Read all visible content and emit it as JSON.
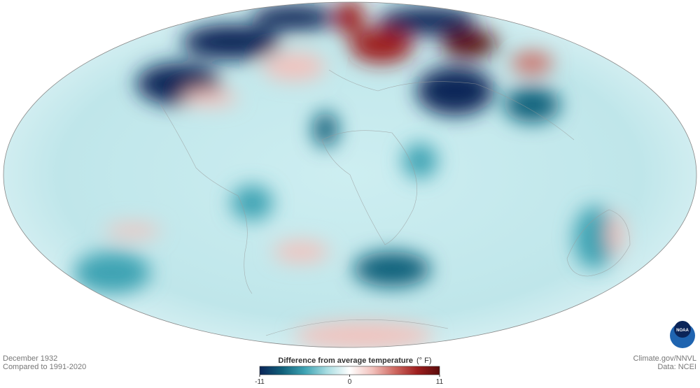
{
  "map": {
    "caption": {
      "date": "December 1932",
      "baseline": "Compared to 1991-2020"
    },
    "legend": {
      "title": "Difference from average temperature",
      "unit": "(° F)",
      "range": [
        -11,
        11
      ],
      "ticks": [
        -11,
        0,
        11
      ],
      "colors": [
        "#0b2559",
        "#11607a",
        "#3ea3b3",
        "#a9dde2",
        "#ffffff",
        "#f2c2bd",
        "#cf6a62",
        "#9e1f1f",
        "#5a0a0a"
      ]
    },
    "credits": {
      "source": "Climate.gov/NNVL",
      "data": "Data: NCEI"
    },
    "logo": "NOAA"
  }
}
